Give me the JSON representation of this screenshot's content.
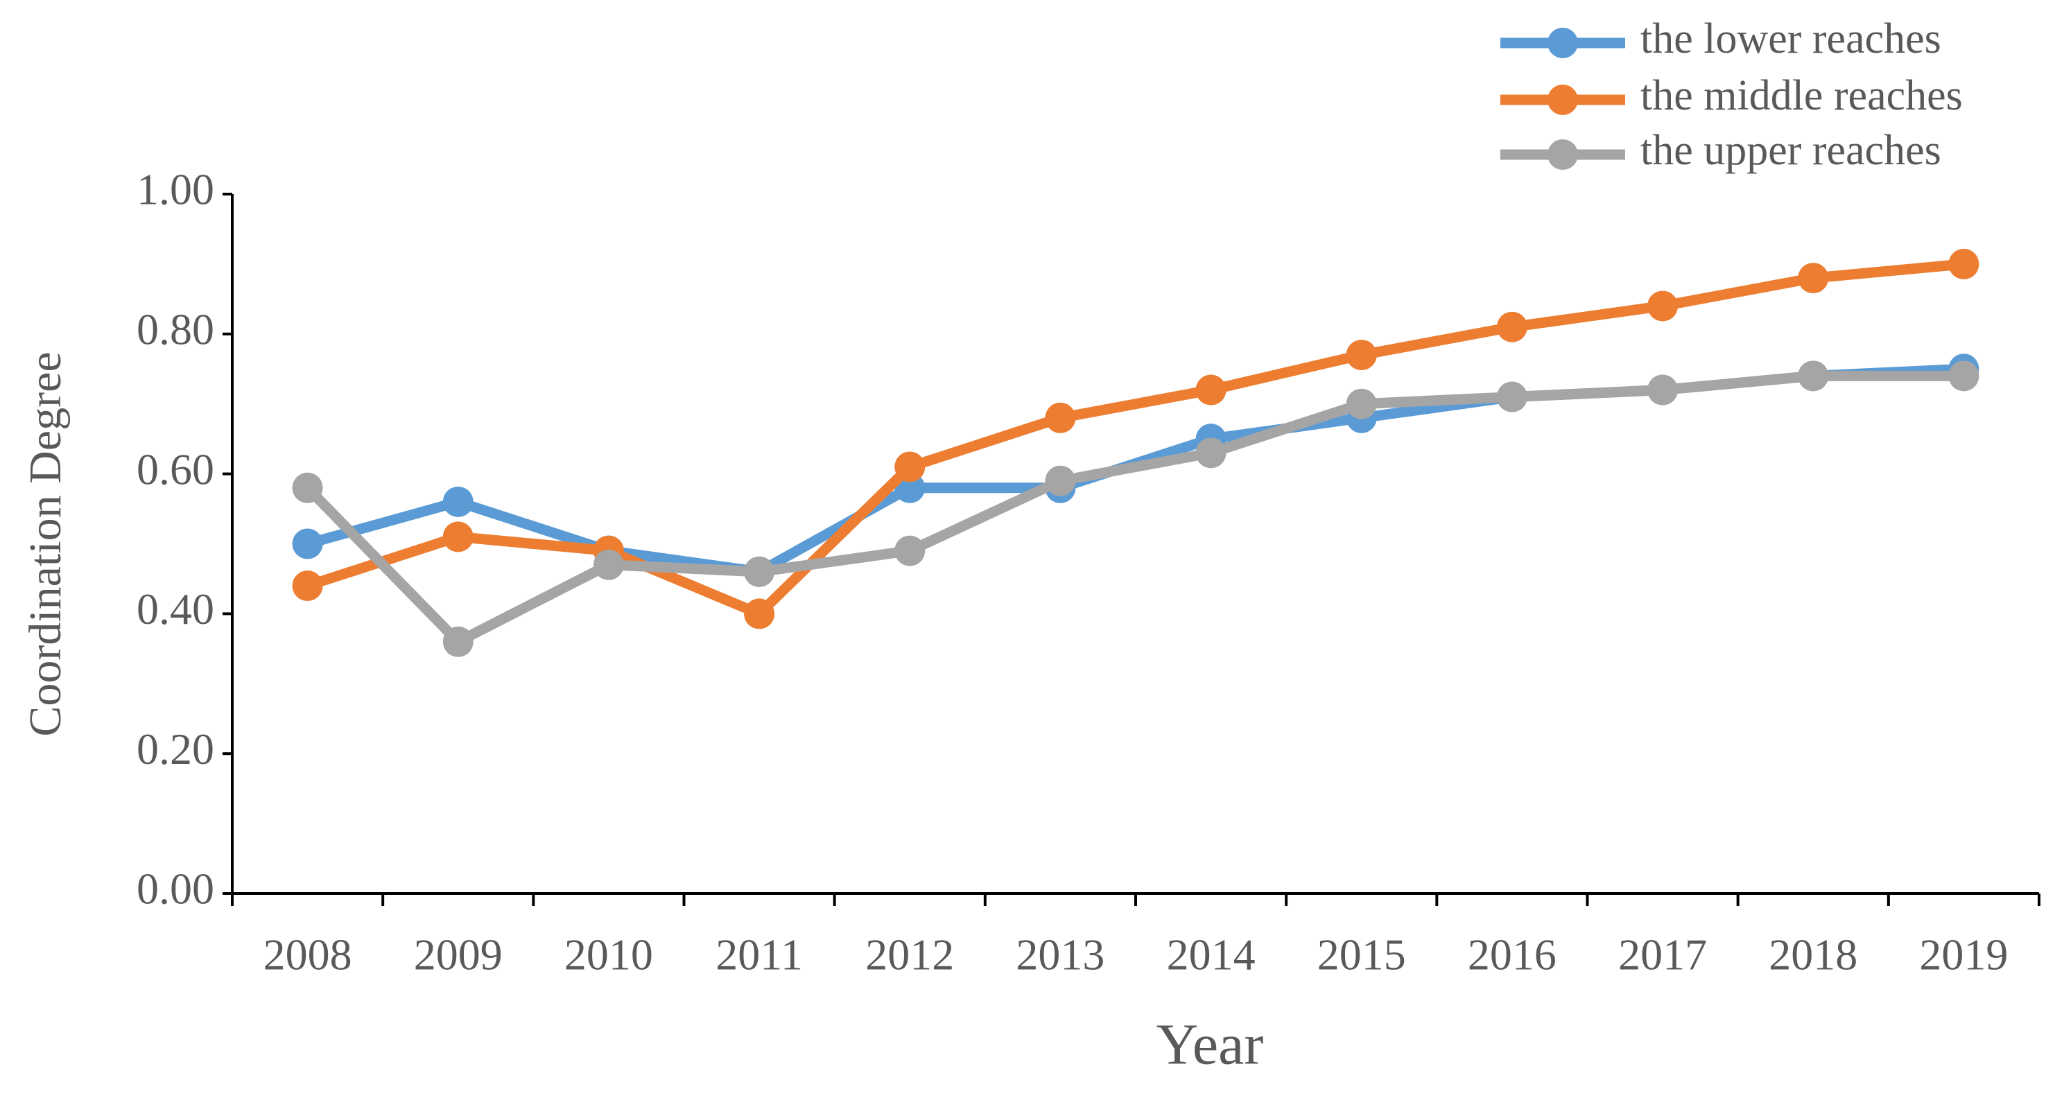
{
  "chart_data": {
    "type": "line",
    "x_label": "Year",
    "y_label": "Coordination Degree",
    "categories": [
      "2008",
      "2009",
      "2010",
      "2011",
      "2012",
      "2013",
      "2014",
      "2015",
      "2016",
      "2017",
      "2018",
      "2019"
    ],
    "series": [
      {
        "name": "the lower reaches",
        "color": "#5b9bd5",
        "values": [
          0.5,
          0.56,
          0.49,
          0.46,
          0.58,
          0.58,
          0.65,
          0.68,
          0.71,
          0.72,
          0.74,
          0.75
        ]
      },
      {
        "name": "the middle reaches",
        "color": "#ed7d31",
        "values": [
          0.44,
          0.51,
          0.49,
          0.4,
          0.61,
          0.68,
          0.72,
          0.77,
          0.81,
          0.84,
          0.88,
          0.9
        ]
      },
      {
        "name": "the upper reaches",
        "color": "#a5a5a5",
        "values": [
          0.58,
          0.36,
          0.47,
          0.46,
          0.49,
          0.59,
          0.63,
          0.7,
          0.71,
          0.72,
          0.74,
          0.74
        ]
      }
    ],
    "ylim": [
      0,
      1
    ],
    "yticks": [
      {
        "value": 0,
        "label": "0.00"
      },
      {
        "value": 0.2,
        "label": "0.20"
      },
      {
        "value": 0.4,
        "label": "0.40"
      },
      {
        "value": 0.6,
        "label": "0.60"
      },
      {
        "value": 0.8,
        "label": "0.80"
      },
      {
        "value": 1,
        "label": "1.00"
      }
    ],
    "grid": false,
    "legend": "top-right"
  }
}
